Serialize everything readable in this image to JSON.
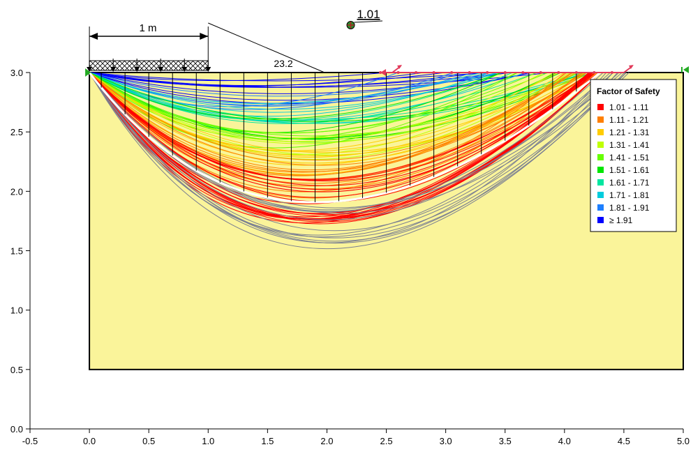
{
  "chart_data": {
    "type": "slope_stability_slip_surfaces",
    "xlim": [
      -0.5,
      5.0
    ],
    "ylim": [
      0.0,
      3.0
    ],
    "x_ticks": [
      "-0.5",
      "0.0",
      "0.5",
      "1.0",
      "1.5",
      "2.0",
      "2.5",
      "3.0",
      "3.5",
      "4.0",
      "4.5",
      "5.0"
    ],
    "y_ticks": [
      "0.0",
      "0.5",
      "1.0",
      "1.5",
      "2.0",
      "2.5",
      "3.0"
    ],
    "x_tick_values": [
      -0.5,
      0,
      0.5,
      1.0,
      1.5,
      2.0,
      2.5,
      3.0,
      3.5,
      4.0,
      4.5,
      5.0
    ],
    "y_tick_values": [
      0,
      0.5,
      1.0,
      1.5,
      2.0,
      2.5,
      3.0
    ],
    "soil_region": {
      "x": [
        0.0,
        5.0
      ],
      "y": [
        0.5,
        3.0
      ],
      "color": "#FAF49A"
    },
    "surcharge_load": {
      "x": [
        0.0,
        1.0
      ],
      "y": 3.0,
      "dimension_label": "1 m",
      "arrow_x": [
        0.0,
        0.2,
        0.4,
        0.6,
        0.8,
        1.0
      ]
    },
    "slip_center": {
      "x": 2.2,
      "y": 3.4,
      "label": "1.01"
    },
    "annotation": {
      "label": "23.2",
      "x": 1.98,
      "y": 3.0
    },
    "critical_slip": {
      "entry_x": 0.0,
      "exit_x": 4.3,
      "bottom_x": 1.65,
      "bottom_y": 1.88,
      "color": "#FFFFFF"
    },
    "critical_slices": [
      0.1,
      0.3,
      0.5,
      0.7,
      0.9,
      1.1,
      1.3,
      1.5,
      1.7,
      1.9,
      2.1,
      2.3,
      2.5,
      2.7,
      2.9,
      3.1,
      3.3,
      3.5,
      3.7,
      3.9,
      4.1
    ],
    "exit_markers_x": [
      2.45,
      2.6,
      2.75,
      2.9,
      3.05,
      3.2,
      3.35,
      3.5,
      3.65,
      3.8,
      3.95,
      4.1,
      4.25,
      4.4
    ],
    "far_markers_x": [
      4.3,
      4.5
    ],
    "legend": {
      "title": "Factor of Safety",
      "position": "top-right",
      "entries": [
        {
          "label": "1.01 - 1.11",
          "color": "#FF0000"
        },
        {
          "label": "1.11 - 1.21",
          "color": "#FF7F00"
        },
        {
          "label": "1.21 - 1.31",
          "color": "#FFCC00"
        },
        {
          "label": "1.31 - 1.41",
          "color": "#BFFF00"
        },
        {
          "label": "1.41 - 1.51",
          "color": "#66FF00"
        },
        {
          "label": "1.51 - 1.61",
          "color": "#00E600"
        },
        {
          "label": "1.61 - 1.71",
          "color": "#00E6A0"
        },
        {
          "label": "1.71 - 1.81",
          "color": "#00CCDD"
        },
        {
          "label": "1.81 - 1.91",
          "color": "#1E7FFF"
        },
        {
          "label": "≥ 1.91",
          "color": "#0000FF"
        }
      ]
    },
    "slip_surface_families": [
      {
        "color": "#0000FF",
        "entry_x": 0.0,
        "exit_x": [
          2.5,
          4.0
        ],
        "depth_range": [
          2.7,
          2.95
        ],
        "count": 10
      },
      {
        "color": "#1E7FFF",
        "entry_x": 0.0,
        "exit_x": [
          2.5,
          4.2
        ],
        "depth_range": [
          2.65,
          2.85
        ],
        "count": 6
      },
      {
        "color": "#00CCDD",
        "entry_x": 0.0,
        "exit_x": [
          3.0,
          4.3
        ],
        "depth_range": [
          2.55,
          2.75
        ],
        "count": 6
      },
      {
        "color": "#00E6A0",
        "entry_x": 0.0,
        "exit_x": [
          3.2,
          4.3
        ],
        "depth_range": [
          2.5,
          2.65
        ],
        "count": 5
      },
      {
        "color": "#00E600",
        "entry_x": 0.0,
        "exit_x": [
          3.4,
          4.3
        ],
        "depth_range": [
          2.4,
          2.6
        ],
        "count": 6
      },
      {
        "color": "#66FF00",
        "entry_x": 0.0,
        "exit_x": [
          3.6,
          4.3
        ],
        "depth_range": [
          2.3,
          2.5
        ],
        "count": 6
      },
      {
        "color": "#BFFF00",
        "entry_x": 0.0,
        "exit_x": [
          3.8,
          4.3
        ],
        "depth_range": [
          2.25,
          2.45
        ],
        "count": 6
      },
      {
        "color": "#FFCC00",
        "entry_x": 0.0,
        "exit_x": [
          3.9,
          4.3
        ],
        "depth_range": [
          2.05,
          2.35
        ],
        "count": 8
      },
      {
        "color": "#FF7F00",
        "entry_x": 0.0,
        "exit_x": [
          4.0,
          4.3
        ],
        "depth_range": [
          1.85,
          2.25
        ],
        "count": 14
      },
      {
        "color": "#FF0000",
        "entry_x": 0.0,
        "exit_x": [
          4.2,
          4.3
        ],
        "depth_range": [
          1.7,
          2.1
        ],
        "count": 18
      },
      {
        "color": "#FF0000",
        "entry_x": 0.0,
        "exit_x": [
          4.3,
          4.3
        ],
        "depth_range": [
          1.62,
          1.8
        ],
        "count": 6
      },
      {
        "color": "#7A7F92",
        "entry_x": 0.0,
        "exit_x": [
          4.3,
          4.55
        ],
        "depth_range": [
          1.43,
          1.85
        ],
        "count": 14
      }
    ]
  }
}
